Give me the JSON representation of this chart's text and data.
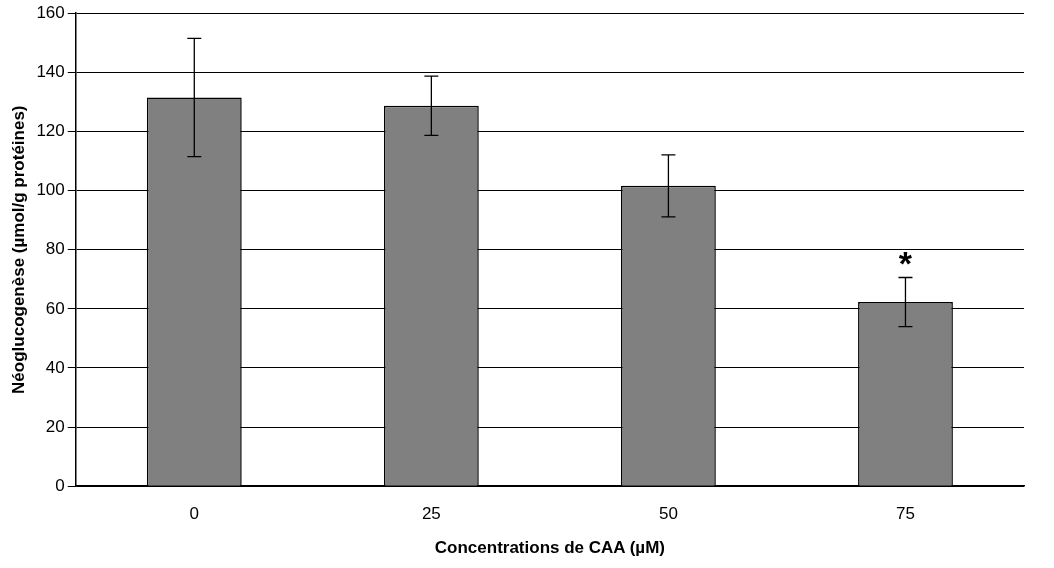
{
  "chart_data": {
    "type": "bar",
    "xlabel": "Concentrations de CAA (µM)",
    "ylabel": "Néoglucogenèse (µmol/g protéines)",
    "categories": [
      "0",
      "25",
      "50",
      "75"
    ],
    "values": [
      131.5,
      128.7,
      101.6,
      62.3
    ],
    "errors": [
      20,
      10,
      10.5,
      8.3
    ],
    "color": "#808080",
    "ylim": [
      0,
      160
    ],
    "yticks": [
      0,
      20,
      40,
      60,
      80,
      100,
      120,
      140,
      160
    ],
    "grid": "y",
    "legend": false,
    "annotations": [
      {
        "text": "*",
        "x": "75",
        "y": 70.6
      }
    ]
  }
}
